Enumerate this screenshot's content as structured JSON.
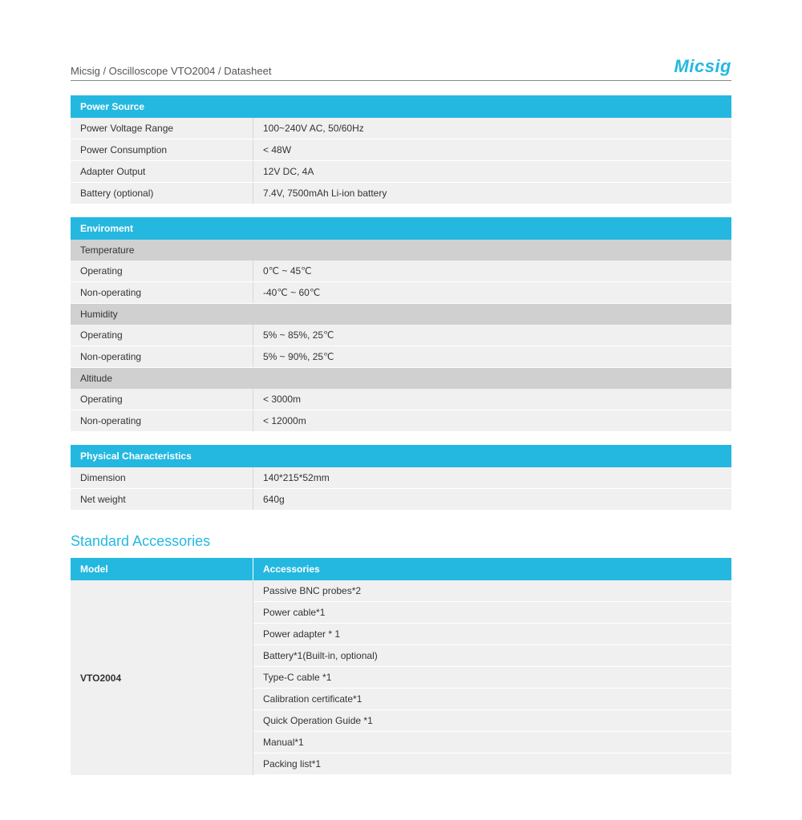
{
  "header": {
    "breadcrumb": "Micsig / Oscilloscope VTO2004 / Datasheet",
    "logo": "Micsig"
  },
  "colors": {
    "accent": "#24b8e0",
    "subheader_bg": "#d0d0d0",
    "row_bg": "#f0f0f0",
    "border": "#d8d8d8",
    "text": "#333333"
  },
  "sections": {
    "power": {
      "title": "Power Source",
      "rows": [
        {
          "label": "Power Voltage Range",
          "value": "100~240V AC, 50/60Hz"
        },
        {
          "label": "Power Consumption",
          "value": "< 48W"
        },
        {
          "label": "Adapter Output",
          "value": "12V DC, 4A"
        },
        {
          "label": "Battery (optional)",
          "value": "7.4V, 7500mAh Li-ion battery"
        }
      ]
    },
    "environment": {
      "title": "Enviroment",
      "groups": [
        {
          "subtitle": "Temperature",
          "rows": [
            {
              "label": "Operating",
              "value": "0℃ ~ 45℃"
            },
            {
              "label": "Non-operating",
              "value": "-40℃ ~ 60℃"
            }
          ]
        },
        {
          "subtitle": "Humidity",
          "rows": [
            {
              "label": "Operating",
              "value": "5% ~ 85%, 25℃"
            },
            {
              "label": "Non-operating",
              "value": "5% ~ 90%, 25℃"
            }
          ]
        },
        {
          "subtitle": "Altitude",
          "rows": [
            {
              "label": "Operating",
              "value": "< 3000m"
            },
            {
              "label": "Non-operating",
              "value": "< 12000m"
            }
          ]
        }
      ]
    },
    "physical": {
      "title": "Physical Characteristics",
      "rows": [
        {
          "label": "Dimension",
          "value": "140*215*52mm"
        },
        {
          "label": "Net weight",
          "value": "640g"
        }
      ]
    }
  },
  "accessories": {
    "section_title": "Standard Accessories",
    "headers": {
      "col1": "Model",
      "col2": "Accessories"
    },
    "model": "VTO2004",
    "items": [
      "Passive BNC probes*2",
      "Power cable*1",
      "Power adapter * 1",
      "Battery*1(Built-in, optional)",
      "Type-C  cable *1",
      "Calibration certificate*1",
      "Quick Operation Guide *1",
      "Manual*1",
      "Packing list*1"
    ]
  }
}
